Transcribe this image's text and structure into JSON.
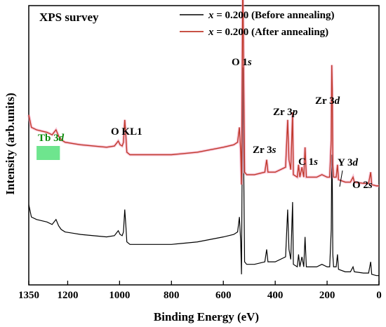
{
  "chart_data": {
    "type": "line",
    "title": "XPS survey",
    "xlabel": "Binding Energy (eV)",
    "ylabel": "Intensity (arb.units)",
    "xlim": [
      1350,
      0
    ],
    "x_reversed": true,
    "x_ticks": [
      "1350",
      "1200",
      "1000",
      "800",
      "600",
      "400",
      "200",
      "0"
    ],
    "y_ticks_shown": false,
    "grid": false,
    "legend_position": "top-right",
    "series": [
      {
        "name": "x = 0.200 (Before annealing)",
        "color": "#000000",
        "points": [
          [
            1350,
            0.3
          ],
          [
            1340,
            0.25
          ],
          [
            1320,
            0.24
          ],
          [
            1300,
            0.235
          ],
          [
            1280,
            0.23
          ],
          [
            1260,
            0.22
          ],
          [
            1245,
            0.24
          ],
          [
            1235,
            0.215
          ],
          [
            1225,
            0.2
          ],
          [
            1210,
            0.19
          ],
          [
            1180,
            0.185
          ],
          [
            1150,
            0.18
          ],
          [
            1100,
            0.175
          ],
          [
            1050,
            0.17
          ],
          [
            1020,
            0.175
          ],
          [
            1005,
            0.195
          ],
          [
            998,
            0.18
          ],
          [
            990,
            0.175
          ],
          [
            985,
            0.19
          ],
          [
            980,
            0.28
          ],
          [
            976,
            0.22
          ],
          [
            972,
            0.15
          ],
          [
            960,
            0.14
          ],
          [
            900,
            0.14
          ],
          [
            850,
            0.14
          ],
          [
            800,
            0.14
          ],
          [
            700,
            0.15
          ],
          [
            600,
            0.17
          ],
          [
            560,
            0.18
          ],
          [
            545,
            0.19
          ],
          [
            538,
            0.25
          ],
          [
            533,
            0.15
          ],
          [
            530,
            0.02
          ],
          [
            525,
            0.85
          ],
          [
            521,
            0.4
          ],
          [
            518,
            0.07
          ],
          [
            510,
            0.06
          ],
          [
            480,
            0.06
          ],
          [
            440,
            0.07
          ],
          [
            433,
            0.12
          ],
          [
            428,
            0.07
          ],
          [
            400,
            0.07
          ],
          [
            360,
            0.09
          ],
          [
            352,
            0.28
          ],
          [
            347,
            0.12
          ],
          [
            340,
            0.08
          ],
          [
            333,
            0.31
          ],
          [
            330,
            0.06
          ],
          [
            315,
            0.05
          ],
          [
            310,
            0.1
          ],
          [
            305,
            0.05
          ],
          [
            297,
            0.09
          ],
          [
            290,
            0.05
          ],
          [
            285,
            0.17
          ],
          [
            280,
            0.05
          ],
          [
            260,
            0.05
          ],
          [
            240,
            0.05
          ],
          [
            220,
            0.06
          ],
          [
            200,
            0.05
          ],
          [
            190,
            0.05
          ],
          [
            184,
            0.2
          ],
          [
            182,
            0.5
          ],
          [
            180,
            0.4
          ],
          [
            178,
            0.1
          ],
          [
            175,
            0.05
          ],
          [
            165,
            0.05
          ],
          [
            160,
            0.1
          ],
          [
            156,
            0.04
          ],
          [
            130,
            0.03
          ],
          [
            110,
            0.03
          ],
          [
            100,
            0.05
          ],
          [
            95,
            0.03
          ],
          [
            60,
            0.025
          ],
          [
            40,
            0.025
          ],
          [
            32,
            0.07
          ],
          [
            28,
            0.02
          ],
          [
            10,
            0.015
          ],
          [
            0,
            0.015
          ]
        ]
      },
      {
        "name": "x = 0.200 (After annealing)",
        "color": "#c0392b",
        "points": [
          [
            1350,
            0.3
          ],
          [
            1340,
            0.25
          ],
          [
            1320,
            0.24
          ],
          [
            1300,
            0.235
          ],
          [
            1280,
            0.23
          ],
          [
            1260,
            0.22
          ],
          [
            1245,
            0.24
          ],
          [
            1235,
            0.215
          ],
          [
            1225,
            0.2
          ],
          [
            1210,
            0.19
          ],
          [
            1180,
            0.185
          ],
          [
            1150,
            0.18
          ],
          [
            1100,
            0.175
          ],
          [
            1050,
            0.17
          ],
          [
            1020,
            0.175
          ],
          [
            1005,
            0.195
          ],
          [
            998,
            0.18
          ],
          [
            990,
            0.175
          ],
          [
            985,
            0.19
          ],
          [
            980,
            0.28
          ],
          [
            976,
            0.22
          ],
          [
            972,
            0.15
          ],
          [
            960,
            0.14
          ],
          [
            900,
            0.14
          ],
          [
            850,
            0.14
          ],
          [
            800,
            0.14
          ],
          [
            700,
            0.15
          ],
          [
            600,
            0.17
          ],
          [
            560,
            0.18
          ],
          [
            545,
            0.19
          ],
          [
            538,
            0.25
          ],
          [
            533,
            0.15
          ],
          [
            530,
            0.02
          ],
          [
            525,
            0.85
          ],
          [
            521,
            0.4
          ],
          [
            518,
            0.07
          ],
          [
            510,
            0.06
          ],
          [
            480,
            0.06
          ],
          [
            440,
            0.07
          ],
          [
            433,
            0.12
          ],
          [
            428,
            0.07
          ],
          [
            400,
            0.07
          ],
          [
            360,
            0.09
          ],
          [
            352,
            0.28
          ],
          [
            347,
            0.12
          ],
          [
            340,
            0.08
          ],
          [
            333,
            0.31
          ],
          [
            330,
            0.06
          ],
          [
            315,
            0.05
          ],
          [
            310,
            0.1
          ],
          [
            305,
            0.05
          ],
          [
            297,
            0.09
          ],
          [
            290,
            0.05
          ],
          [
            285,
            0.17
          ],
          [
            280,
            0.05
          ],
          [
            260,
            0.05
          ],
          [
            240,
            0.05
          ],
          [
            220,
            0.06
          ],
          [
            200,
            0.05
          ],
          [
            190,
            0.05
          ],
          [
            184,
            0.2
          ],
          [
            182,
            0.5
          ],
          [
            180,
            0.4
          ],
          [
            178,
            0.1
          ],
          [
            175,
            0.05
          ],
          [
            165,
            0.05
          ],
          [
            160,
            0.1
          ],
          [
            156,
            0.04
          ],
          [
            130,
            0.03
          ],
          [
            110,
            0.03
          ],
          [
            100,
            0.05
          ],
          [
            95,
            0.03
          ],
          [
            60,
            0.025
          ],
          [
            40,
            0.025
          ],
          [
            32,
            0.07
          ],
          [
            28,
            0.02
          ],
          [
            10,
            0.015
          ],
          [
            0,
            0.015
          ]
        ]
      }
    ],
    "vertical_offsets": {
      "x = 0.200 (Before annealing)": 0.0,
      "x = 0.200 (After annealing)": 0.36
    },
    "peak_labels": [
      {
        "label": "O 1s",
        "main": "O 1",
        "sub": "s",
        "x": 531
      },
      {
        "label": "Zr 3p",
        "main": "Zr 3",
        "sub": "p",
        "x": 333
      },
      {
        "label": "Zr 3d",
        "main": "Zr 3",
        "sub": "d",
        "x": 182
      },
      {
        "label": "Zr 3s",
        "main": "Zr 3",
        "sub": "s",
        "x": 432
      },
      {
        "label": "C 1s",
        "main": "C 1",
        "sub": "s",
        "x": 285
      },
      {
        "label": "Y 3d",
        "main": "Y 3",
        "sub": "d",
        "x": 158
      },
      {
        "label": "O 2s",
        "main": "O 2",
        "sub": "s",
        "x": 25
      },
      {
        "label": "O KL1",
        "main": "O KL1",
        "sub": "",
        "x": 978
      },
      {
        "label": "Tb 3d",
        "main": "Tb 3",
        "sub": "d",
        "x": 1278
      }
    ],
    "tb_highlight_range": [
      1320,
      1230
    ],
    "highlight_color": "#55e07a"
  }
}
